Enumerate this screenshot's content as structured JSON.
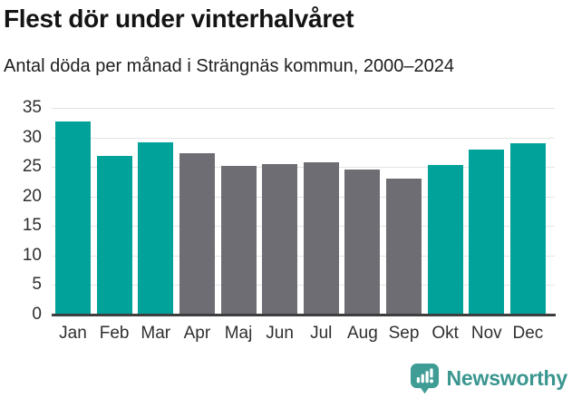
{
  "header": {
    "title": "Flest dör under vinterhalvåret",
    "subtitle": "Antal döda per månad i Strängnäs kommun, 2000–2024"
  },
  "chart_data": {
    "type": "bar",
    "title": "Flest dör under vinterhalvåret",
    "subtitle": "Antal döda per månad i Strängnäs kommun, 2000–2024",
    "categories": [
      "Jan",
      "Feb",
      "Mar",
      "Apr",
      "Maj",
      "Jun",
      "Jul",
      "Aug",
      "Sep",
      "Okt",
      "Nov",
      "Dec"
    ],
    "values": [
      32.7,
      26.9,
      29.1,
      27.4,
      25.2,
      25.5,
      25.8,
      24.5,
      23.0,
      25.3,
      27.9,
      29.0
    ],
    "highlighted_categories": [
      "Jan",
      "Feb",
      "Mar",
      "Okt",
      "Nov",
      "Dec"
    ],
    "colors": {
      "highlight": "#00a29a",
      "default": "#6e6d74"
    },
    "yticks": [
      0,
      5,
      10,
      15,
      20,
      25,
      30,
      35
    ],
    "ylim": [
      0,
      35
    ],
    "xlabel": "",
    "ylabel": "",
    "grid": true,
    "legend": "none"
  },
  "footer": {
    "brand": "Newsworthy",
    "logo_icon": "newsworthy-bar-chart-bubble-icon",
    "brand_color": "#3a968f"
  }
}
